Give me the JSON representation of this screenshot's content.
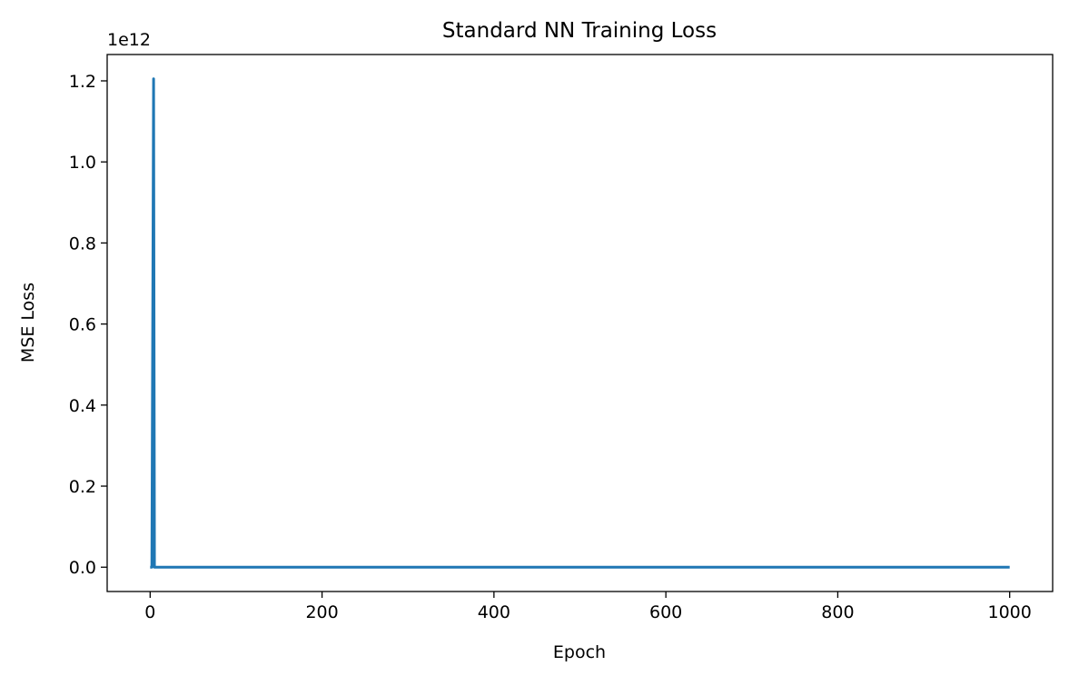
{
  "chart_data": {
    "type": "line",
    "title": "Standard NN Training Loss",
    "xlabel": "Epoch",
    "ylabel": "MSE Loss",
    "y_offset_label": "1e12",
    "xlim": [
      -50,
      1050
    ],
    "ylim": [
      -0.06,
      1.265
    ],
    "y_scale_multiplier": 1000000000000.0,
    "xticks": [
      0,
      200,
      400,
      600,
      800,
      1000
    ],
    "xtick_labels": [
      "0",
      "200",
      "400",
      "600",
      "800",
      "1000"
    ],
    "yticks": [
      0.0,
      0.2,
      0.4,
      0.6,
      0.8,
      1.0,
      1.2
    ],
    "ytick_labels": [
      "0.0",
      "0.2",
      "0.4",
      "0.6",
      "0.8",
      "1.0",
      "1.2"
    ],
    "grid": false,
    "series": [
      {
        "color": "#1f77b4",
        "x": [
          0,
          1,
          2,
          3,
          4,
          5,
          6,
          10,
          50,
          100,
          200,
          400,
          600,
          800,
          1000
        ],
        "y": [
          0.0,
          0.0,
          0.0,
          0.6,
          1.205,
          0.0,
          0.0,
          0.0,
          0.0,
          0.0,
          0.0,
          0.0,
          0.0,
          0.0,
          0.0
        ]
      }
    ]
  }
}
